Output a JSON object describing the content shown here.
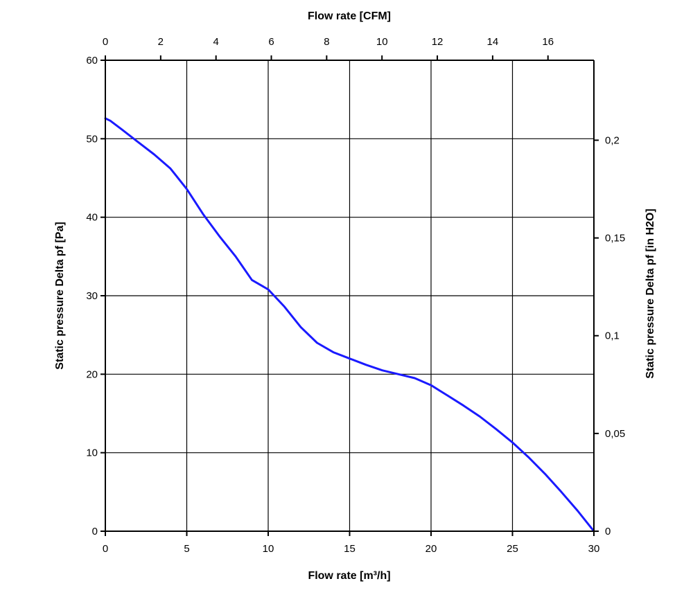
{
  "chart_data": {
    "type": "line",
    "xlabel": "Flow rate [m³/h]",
    "ylabel": "Static pressure Delta pf [Pa]",
    "x2label": "Flow rate [CFM]",
    "y2label": "Static pressure Delta pf [in H2O]",
    "xlim": [
      0,
      30
    ],
    "ylim": [
      0,
      60
    ],
    "x2lim": [
      0,
      17.66
    ],
    "y2lim": [
      0,
      0.2409
    ],
    "grid": true,
    "xticks": [
      0,
      5,
      10,
      15,
      20,
      25,
      30
    ],
    "xtick_labels": [
      "0",
      "5",
      "10",
      "15",
      "20",
      "25",
      "30"
    ],
    "yticks": [
      0,
      10,
      20,
      30,
      40,
      50,
      60
    ],
    "ytick_labels": [
      "0",
      "10",
      "20",
      "30",
      "40",
      "50",
      "60"
    ],
    "x2ticks": [
      0,
      2,
      4,
      6,
      8,
      10,
      12,
      14,
      16
    ],
    "x2tick_labels": [
      "0",
      "2",
      "4",
      "6",
      "8",
      "10",
      "12",
      "14",
      "16"
    ],
    "y2ticks": [
      0,
      0.05,
      0.1,
      0.15,
      0.2
    ],
    "y2tick_labels": [
      "0",
      "0,05",
      "0,1",
      "0,15",
      "0,2"
    ],
    "line_color": "#1a1aff",
    "series": [
      {
        "x": [
          0,
          0.3,
          1,
          2,
          3,
          4,
          5,
          6,
          7,
          8,
          9,
          10,
          11,
          12,
          13,
          14,
          15,
          16,
          17,
          18,
          19,
          20,
          21,
          22,
          23,
          24,
          25,
          26,
          27,
          28,
          29,
          30
        ],
        "y": [
          52.6,
          52.3,
          51.2,
          49.6,
          48.0,
          46.2,
          43.6,
          40.4,
          37.6,
          35.0,
          32.0,
          30.8,
          28.6,
          26.0,
          24.0,
          22.8,
          22.0,
          21.2,
          20.5,
          20.0,
          19.5,
          18.6,
          17.3,
          16.0,
          14.6,
          13.0,
          11.3,
          9.4,
          7.3,
          5.0,
          2.6,
          0
        ]
      }
    ]
  }
}
